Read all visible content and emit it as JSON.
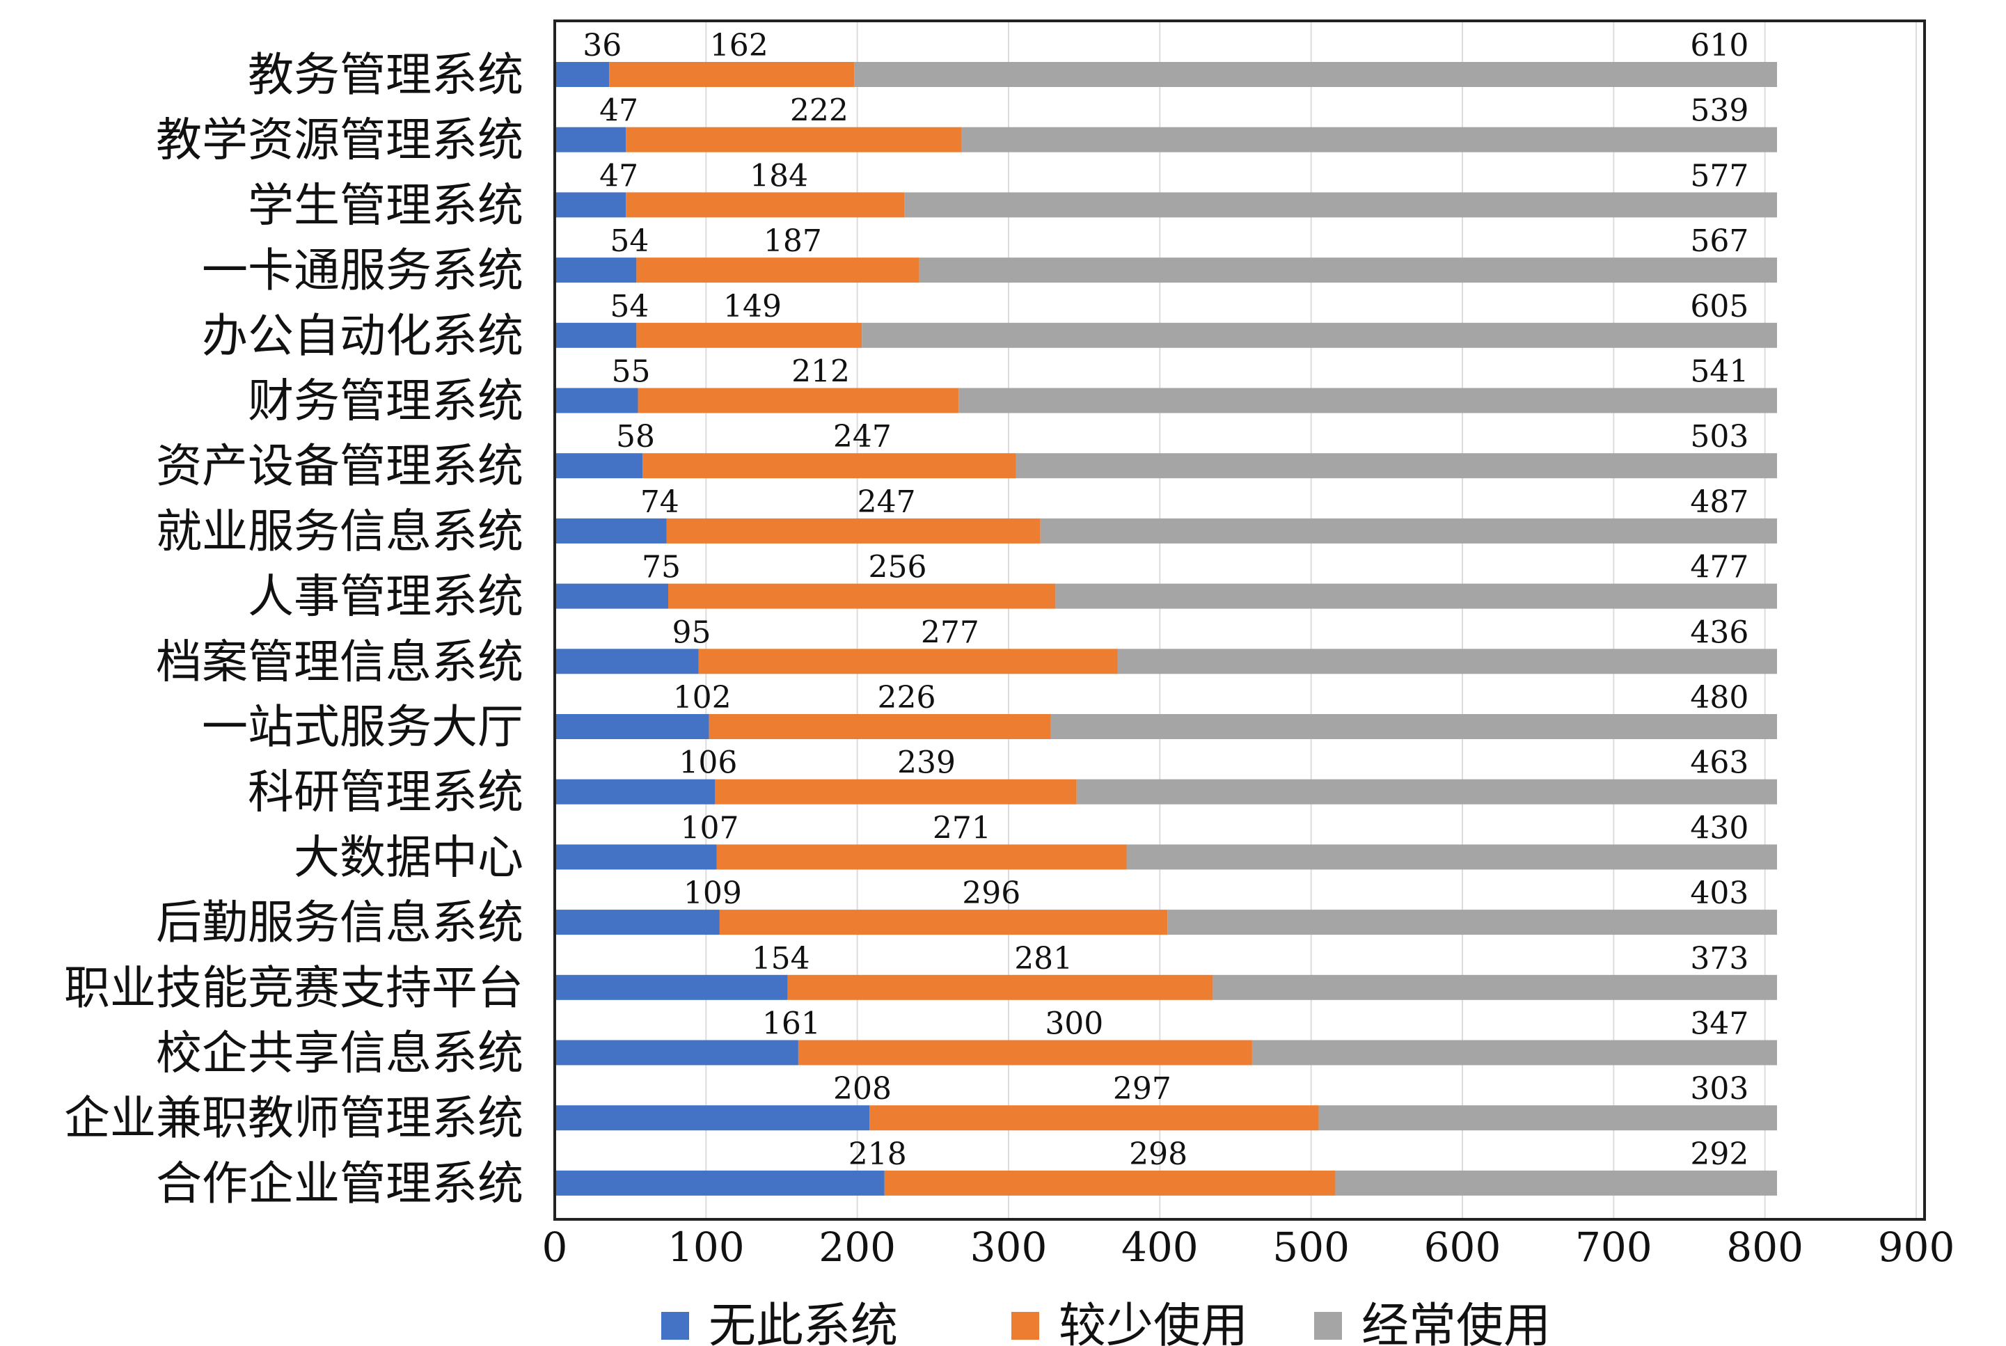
{
  "chart_data": {
    "type": "bar",
    "orientation": "horizontal",
    "stacked": true,
    "categories": [
      "教务管理系统",
      "教学资源管理系统",
      "学生管理系统",
      "一卡通服务系统",
      "办公自动化系统",
      "财务管理系统",
      "资产设备管理系统",
      "就业服务信息系统",
      "人事管理系统",
      "档案管理信息系统",
      "一站式服务大厅",
      "科研管理系统",
      "大数据中心",
      "后勤服务信息系统",
      "职业技能竞赛支持平台",
      "校企共享信息系统",
      "企业兼职教师管理系统",
      "合作企业管理系统"
    ],
    "series": [
      {
        "name": "无此系统",
        "color": "#4472c4",
        "values": [
          36,
          47,
          47,
          54,
          54,
          55,
          58,
          74,
          75,
          95,
          102,
          106,
          107,
          109,
          154,
          161,
          208,
          218
        ]
      },
      {
        "name": "较少使用",
        "color": "#ed7d31",
        "values": [
          162,
          222,
          184,
          187,
          149,
          212,
          247,
          247,
          256,
          277,
          226,
          239,
          271,
          296,
          281,
          300,
          297,
          298
        ]
      },
      {
        "name": "经常使用",
        "color": "#a5a5a5",
        "values": [
          610,
          539,
          577,
          567,
          605,
          541,
          503,
          487,
          477,
          436,
          480,
          463,
          430,
          403,
          373,
          347,
          303,
          292
        ]
      }
    ],
    "xlim": [
      0,
      900
    ],
    "xticks": [
      "0",
      "100",
      "200",
      "300",
      "400",
      "500",
      "600",
      "700",
      "800",
      "900"
    ],
    "grid": true,
    "legend_position": "bottom"
  }
}
